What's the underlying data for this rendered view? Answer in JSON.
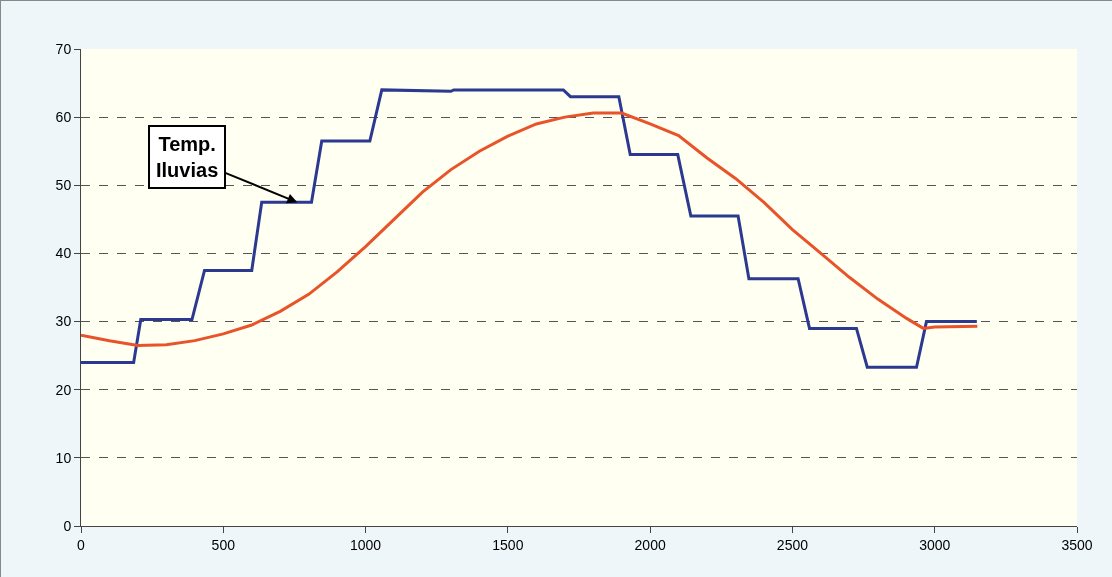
{
  "chart_data": {
    "type": "line",
    "xlim": [
      0,
      3500
    ],
    "xticks": [
      0,
      500,
      1000,
      1500,
      2000,
      2500,
      3000,
      3500
    ],
    "ylim": [
      0,
      70
    ],
    "yticks": [
      0,
      10,
      20,
      30,
      40,
      50,
      60,
      70
    ],
    "grid": "y",
    "line_style": "solid",
    "marker": "none",
    "series": [
      {
        "color": "#2b3990",
        "x": [
          0,
          185,
          210,
          390,
          434,
          600,
          635,
          810,
          846,
          1015,
          1057,
          1300,
          1310,
          1695,
          1720,
          1890,
          1930,
          2097,
          2143,
          2309,
          2347,
          2520,
          2560,
          2725,
          2763,
          2936,
          2971,
          3148
        ],
        "values": [
          24,
          24,
          30.3,
          30.3,
          37.5,
          37.5,
          47.5,
          47.5,
          56.5,
          56.5,
          64,
          63.8,
          64,
          64,
          63,
          63,
          54.5,
          54.5,
          45.5,
          45.5,
          36.3,
          36.3,
          29,
          29,
          23.3,
          23.3,
          30,
          30
        ]
      },
      {
        "color": "#e8532a",
        "x": [
          0,
          100,
          200,
          300,
          400,
          500,
          600,
          700,
          800,
          900,
          1000,
          1100,
          1200,
          1300,
          1400,
          1500,
          1600,
          1700,
          1800,
          1900,
          2000,
          2100,
          2200,
          2300,
          2400,
          2500,
          2600,
          2700,
          2800,
          2900,
          2960,
          3000,
          3150
        ],
        "values": [
          28,
          27.2,
          26.5,
          26.6,
          27.2,
          28.2,
          29.5,
          31.5,
          34,
          37.3,
          41,
          45,
          49,
          52.3,
          55,
          57.2,
          59,
          60,
          60.6,
          60.6,
          59,
          57.3,
          54,
          51,
          47.5,
          43.5,
          40,
          36.5,
          33.3,
          30.5,
          29,
          29.2,
          29.3
        ]
      }
    ],
    "annotations": [
      {
        "text": "Temp.\nIluvias",
        "x": 760,
        "y": 47.5
      }
    ]
  }
}
